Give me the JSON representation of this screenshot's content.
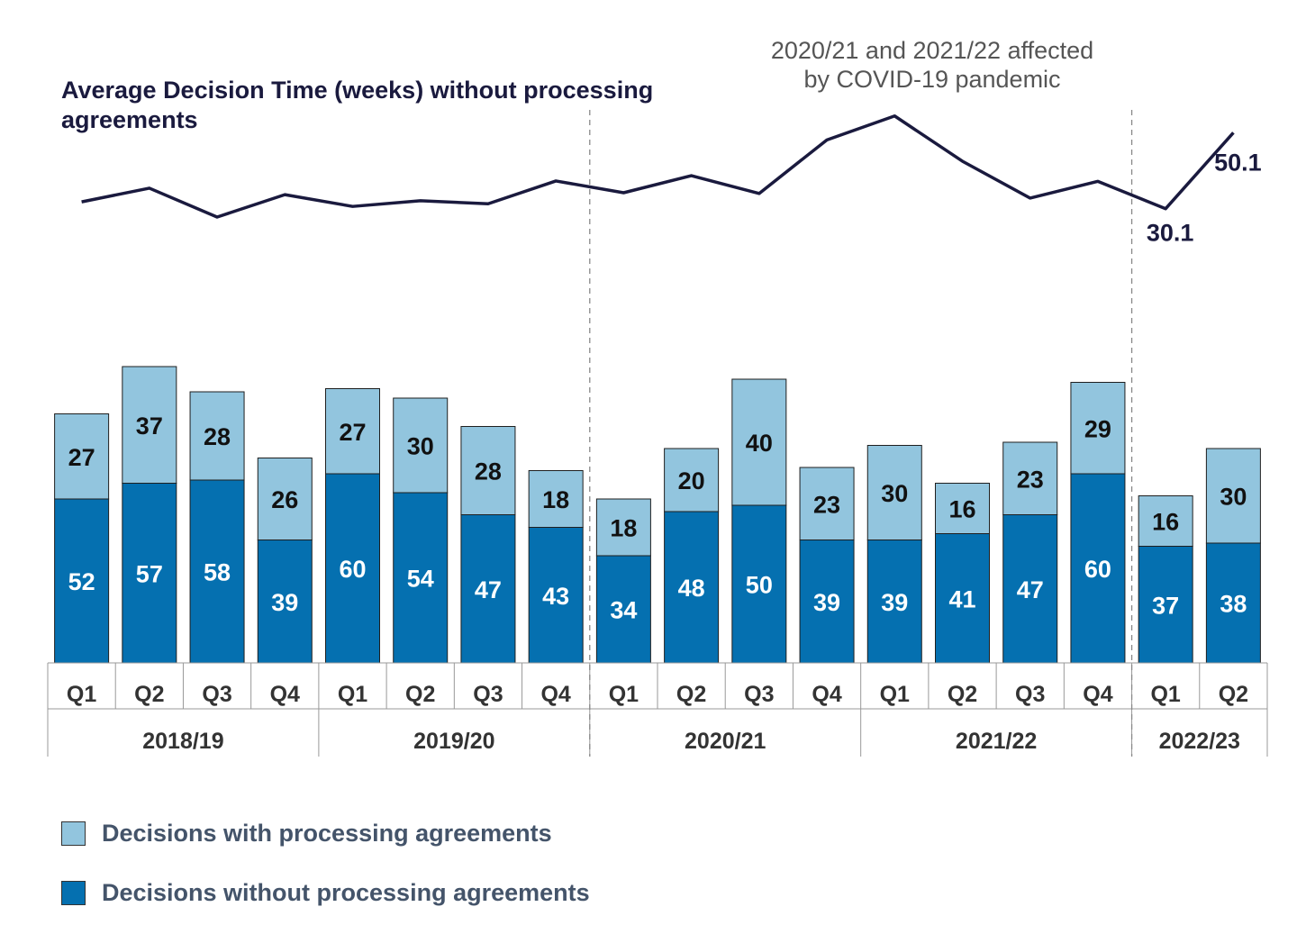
{
  "chart_data": {
    "type": "bar",
    "stacked": true,
    "line_title_line1": "Average Decision Time (weeks) without processing",
    "line_title_line2": "agreements",
    "annotation_line1": "2020/21 and 2021/22 affected",
    "annotation_line2": "by COVID-19 pandemic",
    "quarters": [
      "Q1",
      "Q2",
      "Q3",
      "Q4",
      "Q1",
      "Q2",
      "Q3",
      "Q4",
      "Q1",
      "Q2",
      "Q3",
      "Q4",
      "Q1",
      "Q2",
      "Q3",
      "Q4",
      "Q1",
      "Q2"
    ],
    "years": [
      {
        "label": "2018/19",
        "quarters": 4
      },
      {
        "label": "2019/20",
        "quarters": 4
      },
      {
        "label": "2020/21",
        "quarters": 4
      },
      {
        "label": "2021/22",
        "quarters": 4
      },
      {
        "label": "2022/23",
        "quarters": 2
      }
    ],
    "series": [
      {
        "name": "Decisions without processing agreements",
        "color": "#0570b0",
        "values": [
          52,
          57,
          58,
          39,
          60,
          54,
          47,
          43,
          34,
          48,
          50,
          39,
          39,
          41,
          47,
          60,
          37,
          38
        ]
      },
      {
        "name": "Decisions with processing agreements",
        "color": "#92c5de",
        "values": [
          27,
          37,
          28,
          26,
          27,
          30,
          28,
          18,
          18,
          20,
          40,
          23,
          30,
          16,
          23,
          29,
          16,
          30
        ]
      }
    ],
    "line": {
      "name": "Average Decision Time (weeks) without processing agreements",
      "color": "#1a1a3e",
      "values": [
        31.9,
        35.5,
        27.9,
        33.8,
        30.7,
        32.2,
        31.4,
        37.4,
        34.3,
        38.8,
        34.1,
        48.2,
        54.5,
        42.6,
        32.9,
        37.3,
        30.1,
        50.1
      ],
      "labels": [
        "",
        "",
        "",
        "",
        "",
        "",
        "",
        "",
        "",
        "",
        "",
        "",
        "",
        "",
        "",
        "",
        "30.1",
        "50.1"
      ]
    },
    "covid_markers": [
      "2020/21 start",
      "2022/23 start"
    ]
  },
  "legend": [
    {
      "label": "Decisions with processing agreements",
      "color": "#92c5de"
    },
    {
      "label": "Decisions without processing agreements",
      "color": "#0570b0"
    }
  ]
}
